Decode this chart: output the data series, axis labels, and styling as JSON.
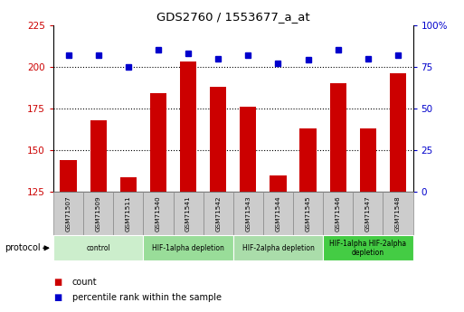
{
  "title": "GDS2760 / 1553677_a_at",
  "samples": [
    "GSM71507",
    "GSM71509",
    "GSM71511",
    "GSM71540",
    "GSM71541",
    "GSM71542",
    "GSM71543",
    "GSM71544",
    "GSM71545",
    "GSM71546",
    "GSM71547",
    "GSM71548"
  ],
  "counts": [
    144,
    168,
    134,
    184,
    203,
    188,
    176,
    135,
    163,
    190,
    163,
    196
  ],
  "percentile_ranks": [
    82,
    82,
    75,
    85,
    83,
    80,
    82,
    77,
    79,
    85,
    80,
    82
  ],
  "left_ylim": [
    125,
    225
  ],
  "left_yticks": [
    125,
    150,
    175,
    200,
    225
  ],
  "right_ylim": [
    0,
    100
  ],
  "right_yticks": [
    0,
    25,
    50,
    75,
    100
  ],
  "bar_color": "#cc0000",
  "dot_color": "#0000cc",
  "groups": [
    {
      "label": "control",
      "start": 0,
      "end": 3,
      "color": "#cceecc"
    },
    {
      "label": "HIF-1alpha depletion",
      "start": 3,
      "end": 6,
      "color": "#99dd99"
    },
    {
      "label": "HIF-2alpha depletion",
      "start": 6,
      "end": 9,
      "color": "#aaddaa"
    },
    {
      "label": "HIF-1alpha HIF-2alpha\ndepletion",
      "start": 9,
      "end": 12,
      "color": "#44cc44"
    }
  ],
  "protocol_label": "protocol",
  "legend_count_label": "count",
  "legend_percentile_label": "percentile rank within the sample",
  "tick_label_color_left": "#cc0000",
  "tick_label_color_right": "#0000cc",
  "sample_box_color": "#cccccc",
  "sample_box_edge": "#888888"
}
